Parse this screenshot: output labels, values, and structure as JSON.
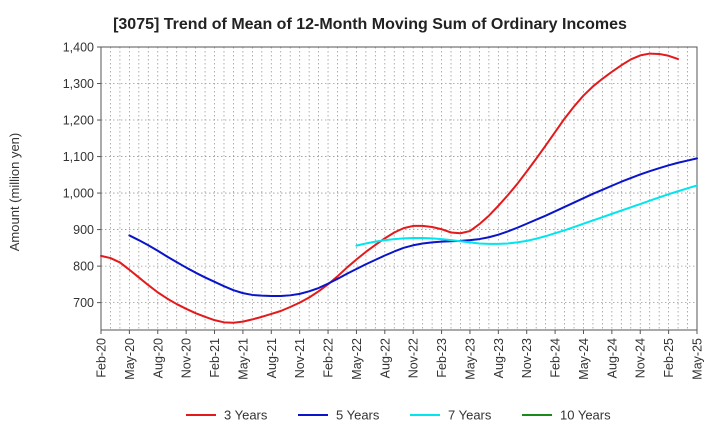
{
  "chart_data": {
    "type": "line",
    "title": "[3075]  Trend of Mean of 12-Month Moving Sum of Ordinary Incomes",
    "xlabel": "",
    "ylabel": "Amount (million yen)",
    "ylim": [
      625,
      1400
    ],
    "yticks": [
      700,
      800,
      900,
      1000,
      1100,
      1200,
      1300,
      1400
    ],
    "ytick_labels": [
      "700",
      "800",
      "900",
      "1,000",
      "1,100",
      "1,200",
      "1,300",
      "1,400"
    ],
    "x_start": "Feb-20",
    "x_count": 64,
    "xtick_labels": [
      "Feb-20",
      "May-20",
      "Aug-20",
      "Nov-20",
      "Feb-21",
      "May-21",
      "Aug-21",
      "Nov-21",
      "Feb-22",
      "May-22",
      "Aug-22",
      "Nov-22",
      "Feb-23",
      "May-23",
      "Aug-23",
      "Nov-23",
      "Feb-24",
      "May-24",
      "Aug-24",
      "Nov-24",
      "Feb-25",
      "May-25"
    ],
    "grid": true,
    "legend_position": "bottom",
    "series": [
      {
        "name": "3 Years",
        "color": "#e31a1c",
        "points": [
          [
            0,
            828
          ],
          [
            1,
            822
          ],
          [
            2,
            810
          ],
          [
            3,
            790
          ],
          [
            4,
            769
          ],
          [
            5,
            748
          ],
          [
            6,
            728
          ],
          [
            7,
            711
          ],
          [
            8,
            696
          ],
          [
            9,
            683
          ],
          [
            10,
            671
          ],
          [
            11,
            661
          ],
          [
            12,
            652
          ],
          [
            13,
            646
          ],
          [
            14,
            645
          ],
          [
            15,
            648
          ],
          [
            16,
            654
          ],
          [
            17,
            661
          ],
          [
            18,
            669
          ],
          [
            19,
            677
          ],
          [
            20,
            688
          ],
          [
            21,
            700
          ],
          [
            22,
            714
          ],
          [
            23,
            731
          ],
          [
            24,
            750
          ],
          [
            25,
            772
          ],
          [
            26,
            796
          ],
          [
            27,
            818
          ],
          [
            28,
            839
          ],
          [
            29,
            858
          ],
          [
            30,
            876
          ],
          [
            31,
            892
          ],
          [
            32,
            904
          ],
          [
            33,
            910
          ],
          [
            34,
            910
          ],
          [
            35,
            907
          ],
          [
            36,
            901
          ],
          [
            37,
            892
          ],
          [
            38,
            890
          ],
          [
            39,
            896
          ],
          [
            40,
            915
          ],
          [
            41,
            938
          ],
          [
            42,
            965
          ],
          [
            43,
            994
          ],
          [
            44,
            1025
          ],
          [
            45,
            1059
          ],
          [
            46,
            1094
          ],
          [
            47,
            1130
          ],
          [
            48,
            1167
          ],
          [
            49,
            1204
          ],
          [
            50,
            1237
          ],
          [
            51,
            1267
          ],
          [
            52,
            1292
          ],
          [
            53,
            1313
          ],
          [
            54,
            1332
          ],
          [
            55,
            1350
          ],
          [
            56,
            1366
          ],
          [
            57,
            1377
          ],
          [
            58,
            1382
          ],
          [
            59,
            1381
          ],
          [
            60,
            1376
          ],
          [
            61,
            1367
          ]
        ]
      },
      {
        "name": "5 Years",
        "color": "#0a14c8",
        "points": [
          [
            3,
            884
          ],
          [
            4,
            871
          ],
          [
            5,
            857
          ],
          [
            6,
            842
          ],
          [
            7,
            826
          ],
          [
            8,
            811
          ],
          [
            9,
            796
          ],
          [
            10,
            782
          ],
          [
            11,
            769
          ],
          [
            12,
            757
          ],
          [
            13,
            745
          ],
          [
            14,
            734
          ],
          [
            15,
            726
          ],
          [
            16,
            721
          ],
          [
            17,
            719
          ],
          [
            18,
            718
          ],
          [
            19,
            718
          ],
          [
            20,
            720
          ],
          [
            21,
            724
          ],
          [
            22,
            731
          ],
          [
            23,
            740
          ],
          [
            24,
            752
          ],
          [
            25,
            765
          ],
          [
            26,
            779
          ],
          [
            27,
            792
          ],
          [
            28,
            805
          ],
          [
            29,
            817
          ],
          [
            30,
            829
          ],
          [
            31,
            840
          ],
          [
            32,
            850
          ],
          [
            33,
            857
          ],
          [
            34,
            862
          ],
          [
            35,
            865
          ],
          [
            36,
            867
          ],
          [
            37,
            868
          ],
          [
            38,
            869
          ],
          [
            39,
            871
          ],
          [
            40,
            874
          ],
          [
            41,
            879
          ],
          [
            42,
            886
          ],
          [
            43,
            895
          ],
          [
            44,
            905
          ],
          [
            45,
            916
          ],
          [
            46,
            927
          ],
          [
            47,
            938
          ],
          [
            48,
            950
          ],
          [
            49,
            962
          ],
          [
            50,
            974
          ],
          [
            51,
            986
          ],
          [
            52,
            998
          ],
          [
            53,
            1009
          ],
          [
            54,
            1020
          ],
          [
            55,
            1031
          ],
          [
            56,
            1041
          ],
          [
            57,
            1051
          ],
          [
            58,
            1060
          ],
          [
            59,
            1068
          ],
          [
            60,
            1076
          ],
          [
            61,
            1083
          ],
          [
            62,
            1089
          ],
          [
            63,
            1095
          ]
        ]
      },
      {
        "name": "7 Years",
        "color": "#00e5ee",
        "points": [
          [
            27,
            856
          ],
          [
            28,
            862
          ],
          [
            29,
            867
          ],
          [
            30,
            871
          ],
          [
            31,
            874
          ],
          [
            32,
            876
          ],
          [
            33,
            877
          ],
          [
            34,
            877
          ],
          [
            35,
            876
          ],
          [
            36,
            874
          ],
          [
            37,
            871
          ],
          [
            38,
            868
          ],
          [
            39,
            865
          ],
          [
            40,
            862
          ],
          [
            41,
            861
          ],
          [
            42,
            861
          ],
          [
            43,
            862
          ],
          [
            44,
            865
          ],
          [
            45,
            869
          ],
          [
            46,
            875
          ],
          [
            47,
            882
          ],
          [
            48,
            890
          ],
          [
            49,
            898
          ],
          [
            50,
            907
          ],
          [
            51,
            916
          ],
          [
            52,
            925
          ],
          [
            53,
            934
          ],
          [
            54,
            943
          ],
          [
            55,
            952
          ],
          [
            56,
            961
          ],
          [
            57,
            970
          ],
          [
            58,
            979
          ],
          [
            59,
            988
          ],
          [
            60,
            997
          ],
          [
            61,
            1005
          ],
          [
            62,
            1013
          ],
          [
            63,
            1021
          ]
        ]
      },
      {
        "name": "10 Years",
        "color": "#1a8a1a",
        "points": []
      }
    ]
  }
}
